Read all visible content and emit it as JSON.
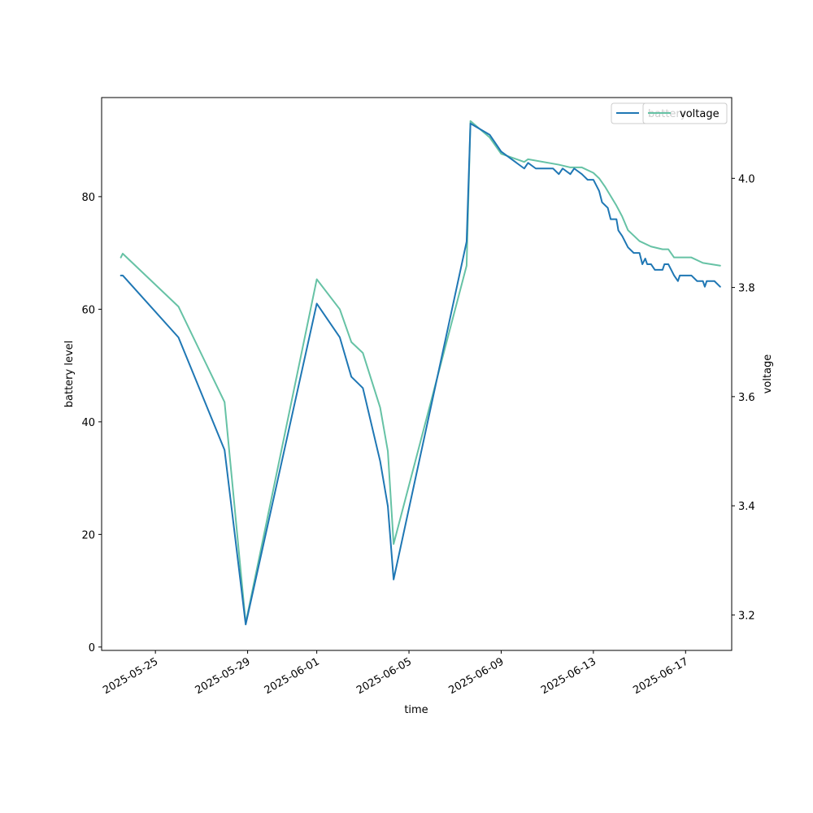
{
  "chart_data": {
    "type": "line",
    "title": "",
    "xlabel": "time",
    "ylabel_left": "battery level",
    "ylabel_right": "voltage",
    "x_ticks": [
      "2025-05-25",
      "2025-05-29",
      "2025-06-01",
      "2025-06-05",
      "2025-06-09",
      "2025-06-13",
      "2025-06-17"
    ],
    "y_left_ticks": [
      0,
      20,
      40,
      60,
      80
    ],
    "y_right_ticks": [
      3.2,
      3.4,
      3.6,
      3.8,
      4.0
    ],
    "xlim": [
      "2025-05-22T16:00",
      "2025-06-19T00:00"
    ],
    "ylim_left": [
      -0.6,
      97.6
    ],
    "ylim_right": [
      3.135,
      4.148
    ],
    "grid": false,
    "legend_position": "top-right",
    "series": [
      {
        "name": "battery",
        "axis": "left",
        "color": "#1f77b4",
        "points": [
          [
            "2025-05-23T12:00",
            66
          ],
          [
            "2025-05-23T14:00",
            66
          ],
          [
            "2025-05-26T00:00",
            55
          ],
          [
            "2025-05-27T12:00",
            40
          ],
          [
            "2025-05-28T00:00",
            35
          ],
          [
            "2025-05-28T22:00",
            4
          ],
          [
            "2025-06-01T00:00",
            61
          ],
          [
            "2025-06-02T00:00",
            55
          ],
          [
            "2025-06-02T12:00",
            48
          ],
          [
            "2025-06-03T00:00",
            46
          ],
          [
            "2025-06-03T18:00",
            33
          ],
          [
            "2025-06-04T02:00",
            25
          ],
          [
            "2025-06-04T08:00",
            12
          ],
          [
            "2025-06-07T12:00",
            72
          ],
          [
            "2025-06-07T16:00",
            93
          ],
          [
            "2025-06-08T12:00",
            91
          ],
          [
            "2025-06-09T00:00",
            88
          ],
          [
            "2025-06-10T00:00",
            85
          ],
          [
            "2025-06-10T04:00",
            86
          ],
          [
            "2025-06-10T12:00",
            85
          ],
          [
            "2025-06-11T06:00",
            85
          ],
          [
            "2025-06-11T12:00",
            84
          ],
          [
            "2025-06-11T16:00",
            85
          ],
          [
            "2025-06-12T00:00",
            84
          ],
          [
            "2025-06-12T04:00",
            85
          ],
          [
            "2025-06-12T12:00",
            84
          ],
          [
            "2025-06-12T18:00",
            83
          ],
          [
            "2025-06-13T00:00",
            83
          ],
          [
            "2025-06-13T06:00",
            81
          ],
          [
            "2025-06-13T09:00",
            79
          ],
          [
            "2025-06-13T15:00",
            78
          ],
          [
            "2025-06-13T18:00",
            76
          ],
          [
            "2025-06-14T00:00",
            76
          ],
          [
            "2025-06-14T02:00",
            74
          ],
          [
            "2025-06-14T06:00",
            73
          ],
          [
            "2025-06-14T12:00",
            71
          ],
          [
            "2025-06-14T18:00",
            70
          ],
          [
            "2025-06-15T00:00",
            70
          ],
          [
            "2025-06-15T03:00",
            68
          ],
          [
            "2025-06-15T06:00",
            69
          ],
          [
            "2025-06-15T08:00",
            68
          ],
          [
            "2025-06-15T12:00",
            68
          ],
          [
            "2025-06-15T16:00",
            67
          ],
          [
            "2025-06-16T00:00",
            67
          ],
          [
            "2025-06-16T02:00",
            68
          ],
          [
            "2025-06-16T06:00",
            68
          ],
          [
            "2025-06-16T12:00",
            66
          ],
          [
            "2025-06-16T16:00",
            65
          ],
          [
            "2025-06-16T18:00",
            66
          ],
          [
            "2025-06-17T06:00",
            66
          ],
          [
            "2025-06-17T12:00",
            65
          ],
          [
            "2025-06-17T18:00",
            65
          ],
          [
            "2025-06-17T20:00",
            64
          ],
          [
            "2025-06-17T22:00",
            65
          ],
          [
            "2025-06-18T06:00",
            65
          ],
          [
            "2025-06-18T12:00",
            64
          ]
        ]
      },
      {
        "name": "voltage",
        "axis": "right",
        "color": "#66c2a5",
        "points": [
          [
            "2025-05-23T12:00",
            3.855
          ],
          [
            "2025-05-23T14:00",
            3.862
          ],
          [
            "2025-05-26T00:00",
            3.765
          ],
          [
            "2025-05-28T00:00",
            3.59
          ],
          [
            "2025-05-28T22:00",
            3.185
          ],
          [
            "2025-06-01T00:00",
            3.815
          ],
          [
            "2025-06-02T00:00",
            3.76
          ],
          [
            "2025-06-02T12:00",
            3.7
          ],
          [
            "2025-06-03T00:00",
            3.68
          ],
          [
            "2025-06-03T18:00",
            3.58
          ],
          [
            "2025-06-04T02:00",
            3.5
          ],
          [
            "2025-06-04T08:00",
            3.33
          ],
          [
            "2025-06-07T12:00",
            3.84
          ],
          [
            "2025-06-07T16:00",
            4.105
          ],
          [
            "2025-06-08T12:00",
            4.075
          ],
          [
            "2025-06-09T00:00",
            4.045
          ],
          [
            "2025-06-10T00:00",
            4.03
          ],
          [
            "2025-06-10T04:00",
            4.035
          ],
          [
            "2025-06-11T12:00",
            4.025
          ],
          [
            "2025-06-12T00:00",
            4.02
          ],
          [
            "2025-06-12T12:00",
            4.02
          ],
          [
            "2025-06-13T00:00",
            4.01
          ],
          [
            "2025-06-13T06:00",
            4.0
          ],
          [
            "2025-06-13T12:00",
            3.985
          ],
          [
            "2025-06-14T00:00",
            3.95
          ],
          [
            "2025-06-14T06:00",
            3.93
          ],
          [
            "2025-06-14T12:00",
            3.905
          ],
          [
            "2025-06-14T18:00",
            3.895
          ],
          [
            "2025-06-15T00:00",
            3.885
          ],
          [
            "2025-06-15T12:00",
            3.875
          ],
          [
            "2025-06-16T00:00",
            3.87
          ],
          [
            "2025-06-16T06:00",
            3.87
          ],
          [
            "2025-06-16T12:00",
            3.855
          ],
          [
            "2025-06-16T18:00",
            3.855
          ],
          [
            "2025-06-17T06:00",
            3.855
          ],
          [
            "2025-06-17T18:00",
            3.845
          ],
          [
            "2025-06-18T12:00",
            3.84
          ]
        ]
      }
    ]
  }
}
